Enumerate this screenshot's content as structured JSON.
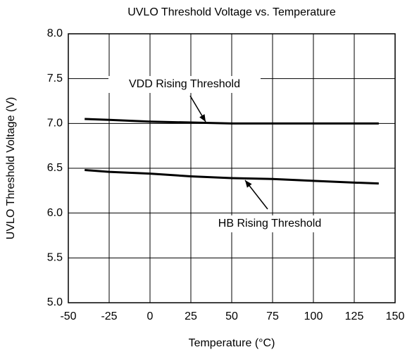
{
  "chart_data": {
    "type": "line",
    "title": "UVLO Threshold Voltage vs. Temperature",
    "x_label": "Temperature (°C)",
    "y_label": "UVLO Threshold Voltage (V)",
    "x": [
      -40,
      -25,
      0,
      25,
      50,
      75,
      100,
      125,
      140
    ],
    "series": [
      {
        "name": "VDD Rising Threshold",
        "color": "#000000",
        "values": [
          7.05,
          7.04,
          7.02,
          7.01,
          7.0,
          7.0,
          7.0,
          7.0,
          7.0
        ]
      },
      {
        "name": "HB Rising Threshold",
        "color": "#000000",
        "values": [
          6.48,
          6.46,
          6.44,
          6.41,
          6.39,
          6.38,
          6.36,
          6.34,
          6.33
        ]
      }
    ],
    "xlim": [
      -50,
      150
    ],
    "xticks": [
      -50,
      -25,
      0,
      25,
      50,
      75,
      100,
      125,
      150
    ],
    "ylim": [
      5,
      8
    ],
    "yticks": [
      {
        "value": 5,
        "label": "5.0"
      },
      {
        "value": 5.5,
        "label": "5.5"
      },
      {
        "value": 6,
        "label": "6.0"
      },
      {
        "value": 6.5,
        "label": "6.5"
      },
      {
        "value": 7,
        "label": "7.0"
      },
      {
        "value": 7.5,
        "label": "7.5"
      },
      {
        "value": 8,
        "label": "8.0"
      }
    ],
    "grid": true
  }
}
